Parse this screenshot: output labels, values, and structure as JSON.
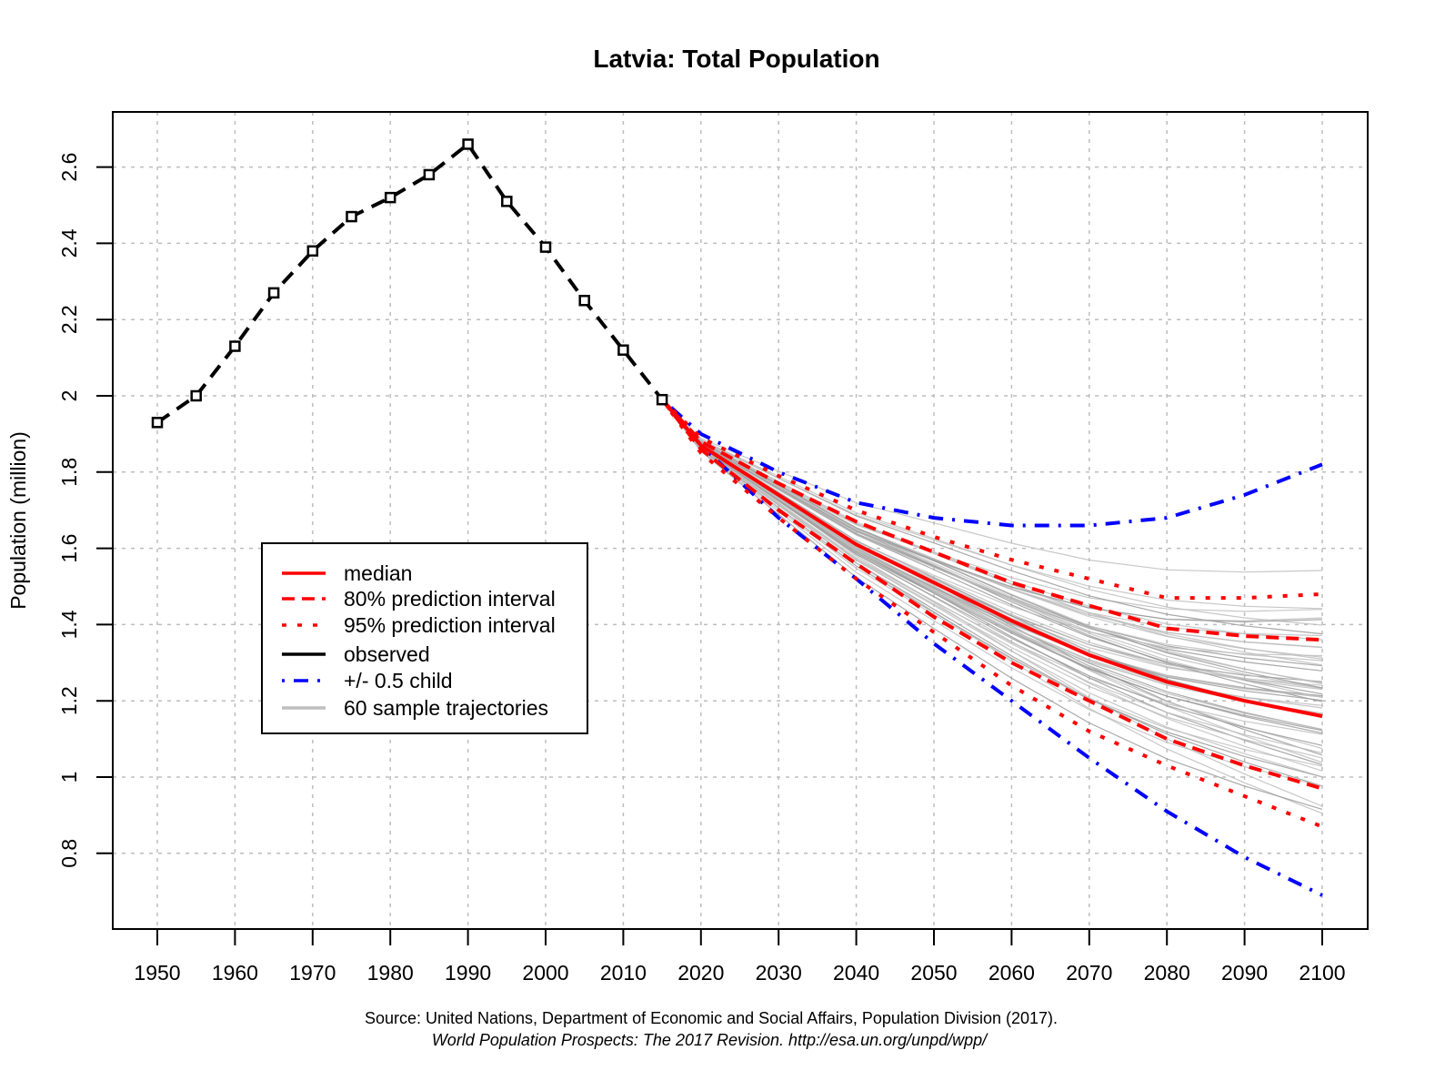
{
  "chart_data": {
    "type": "line",
    "title": "Latvia: Total Population",
    "xlabel": "",
    "ylabel": "Population (million)",
    "xlim": [
      1944,
      2106
    ],
    "ylim": [
      0.6,
      2.72
    ],
    "grid": true,
    "x_ticks": [
      1950,
      1960,
      1970,
      1980,
      1990,
      2000,
      2010,
      2020,
      2030,
      2040,
      2050,
      2060,
      2070,
      2080,
      2090,
      2100
    ],
    "y_ticks": [
      0.8,
      1,
      1.2,
      1.4,
      1.6,
      1.8,
      2,
      2.2,
      2.4,
      2.6
    ],
    "y_tick_labels": [
      "0.8",
      "1",
      "1.2",
      "1.4",
      "1.6",
      "1.8",
      "2",
      "2.2",
      "2.4",
      "2.6"
    ],
    "legend_position": "center-left",
    "series": [
      {
        "name": "observed",
        "legend_label": "observed",
        "color": "#000000",
        "style": "dashed-with-square-markers",
        "x": [
          1950,
          1955,
          1960,
          1965,
          1970,
          1975,
          1980,
          1985,
          1990,
          1995,
          2000,
          2005,
          2010,
          2015
        ],
        "values": [
          1.93,
          2.0,
          2.13,
          2.27,
          2.38,
          2.47,
          2.52,
          2.58,
          2.66,
          2.51,
          2.39,
          2.25,
          2.12,
          1.99
        ]
      },
      {
        "name": "median",
        "legend_label": "median",
        "color": "#ff0000",
        "style": "solid",
        "x": [
          2015,
          2020,
          2030,
          2040,
          2050,
          2060,
          2070,
          2080,
          2090,
          2100
        ],
        "values": [
          1.99,
          1.87,
          1.74,
          1.61,
          1.51,
          1.41,
          1.32,
          1.25,
          1.2,
          1.16
        ]
      },
      {
        "name": "80% upper",
        "legend_label": "80% prediction interval",
        "color": "#ff0000",
        "style": "dashed",
        "x": [
          2015,
          2020,
          2030,
          2040,
          2050,
          2060,
          2070,
          2080,
          2090,
          2100
        ],
        "values": [
          1.99,
          1.88,
          1.77,
          1.67,
          1.59,
          1.51,
          1.45,
          1.39,
          1.37,
          1.36
        ]
      },
      {
        "name": "80% lower",
        "legend_label": "",
        "color": "#ff0000",
        "style": "dashed",
        "x": [
          2015,
          2020,
          2030,
          2040,
          2050,
          2060,
          2070,
          2080,
          2090,
          2100
        ],
        "values": [
          1.99,
          1.86,
          1.7,
          1.56,
          1.42,
          1.3,
          1.2,
          1.1,
          1.03,
          0.97
        ]
      },
      {
        "name": "95% upper",
        "legend_label": "95% prediction interval",
        "color": "#ff0000",
        "style": "dotted",
        "x": [
          2015,
          2020,
          2030,
          2040,
          2050,
          2060,
          2070,
          2080,
          2090,
          2100
        ],
        "values": [
          1.99,
          1.89,
          1.79,
          1.7,
          1.63,
          1.57,
          1.52,
          1.47,
          1.47,
          1.48
        ]
      },
      {
        "name": "95% lower",
        "legend_label": "",
        "color": "#ff0000",
        "style": "dotted",
        "x": [
          2015,
          2020,
          2030,
          2040,
          2050,
          2060,
          2070,
          2080,
          2090,
          2100
        ],
        "values": [
          1.99,
          1.85,
          1.68,
          1.52,
          1.38,
          1.24,
          1.12,
          1.03,
          0.95,
          0.87
        ]
      },
      {
        "name": "+0.5 child",
        "legend_label": "+/- 0.5 child",
        "color": "#0000ff",
        "style": "dotdash",
        "x": [
          2015,
          2020,
          2030,
          2040,
          2050,
          2060,
          2070,
          2080,
          2090,
          2100
        ],
        "values": [
          1.99,
          1.9,
          1.8,
          1.72,
          1.68,
          1.66,
          1.66,
          1.68,
          1.74,
          1.82
        ]
      },
      {
        "name": "-0.5 child",
        "legend_label": "",
        "color": "#0000ff",
        "style": "dotdash",
        "x": [
          2015,
          2020,
          2030,
          2040,
          2050,
          2060,
          2070,
          2080,
          2090,
          2100
        ],
        "values": [
          1.99,
          1.87,
          1.68,
          1.52,
          1.35,
          1.2,
          1.05,
          0.91,
          0.79,
          0.69
        ]
      }
    ],
    "sample_trajectories": {
      "legend_label": "60 sample trajectories",
      "count": 60,
      "color": "#bebebe",
      "x": [
        2015,
        2020,
        2030,
        2040,
        2050,
        2060,
        2070,
        2080,
        2090,
        2100
      ],
      "end_range_2100": [
        0.87,
        1.59
      ]
    },
    "legend": [
      {
        "label": "median",
        "color": "#ff0000",
        "style": "solid"
      },
      {
        "label": "80% prediction interval",
        "color": "#ff0000",
        "style": "dashed"
      },
      {
        "label": "95% prediction interval",
        "color": "#ff0000",
        "style": "dotted"
      },
      {
        "label": "observed",
        "color": "#000000",
        "style": "solid"
      },
      {
        "label": "+/- 0.5 child",
        "color": "#0000ff",
        "style": "dotdash"
      },
      {
        "label": "60 sample trajectories",
        "color": "#bebebe",
        "style": "solid"
      }
    ],
    "source_line1": "Source: United Nations, Department of Economic and Social Affairs, Population Division (2017).",
    "source_line2": "World Population Prospects: The 2017 Revision. http://esa.un.org/unpd/wpp/"
  }
}
